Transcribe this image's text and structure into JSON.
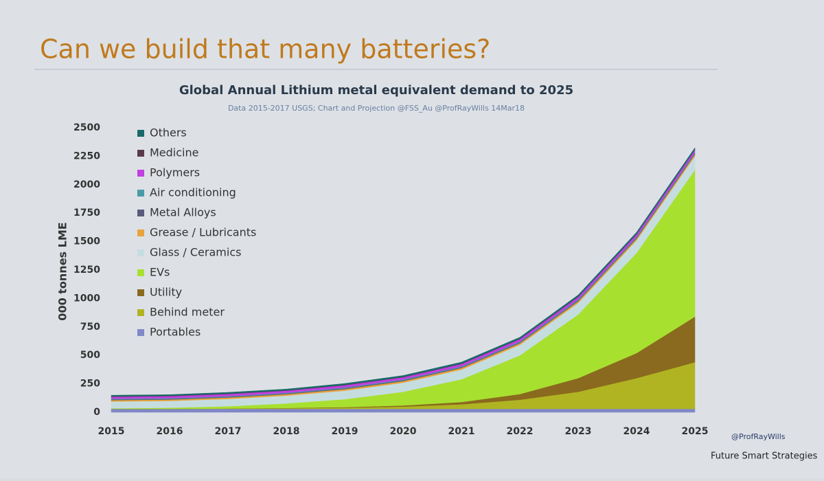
{
  "slide_title": "Can we build that many batteries?",
  "footer": {
    "handle": "@ProfRayWills",
    "company": "Future Smart Strategies"
  },
  "chart_data": {
    "type": "stacked_area",
    "title": "Global Annual Lithium metal equivalent demand to 2025",
    "subtitle": "Data 2015-2017 USGS; Chart and Projection @FSS_Au  @ProfRayWills 14Mar18",
    "y_label": "000 tonnes LME",
    "x": [
      2015,
      2016,
      2017,
      2018,
      2019,
      2020,
      2021,
      2022,
      2023,
      2024,
      2025
    ],
    "xlim": [
      2015,
      2025
    ],
    "ylim": [
      0,
      2500
    ],
    "yticks": [
      0,
      250,
      500,
      750,
      1000,
      1250,
      1500,
      1750,
      2000,
      2250,
      2500
    ],
    "series": [
      {
        "name": "Portables",
        "color": "#8088c8",
        "values": [
          30,
          30,
          30,
          30,
          30,
          30,
          30,
          30,
          30,
          30,
          30
        ]
      },
      {
        "name": "Behind meter",
        "color": "#b0b422",
        "values": [
          0,
          0,
          2,
          5,
          10,
          20,
          40,
          80,
          150,
          270,
          410
        ]
      },
      {
        "name": "Utility",
        "color": "#8a6a1e",
        "values": [
          0,
          0,
          1,
          3,
          5,
          10,
          20,
          50,
          120,
          220,
          400
        ]
      },
      {
        "name": "EVs",
        "color": "#a8e030",
        "values": [
          5,
          10,
          20,
          40,
          70,
          120,
          200,
          340,
          560,
          880,
          1290
        ]
      },
      {
        "name": "Glass / Ceramics",
        "color": "#c6dde0",
        "values": [
          60,
          60,
          64,
          68,
          75,
          80,
          85,
          92,
          100,
          110,
          120
        ]
      },
      {
        "name": "Grease / Lubricants",
        "color": "#e8a33c",
        "values": [
          12,
          12,
          13,
          13,
          14,
          14,
          15,
          15,
          16,
          16,
          17
        ]
      },
      {
        "name": "Metal Alloys",
        "color": "#5a5a7a",
        "values": [
          6,
          6,
          6,
          6,
          7,
          7,
          7,
          7,
          8,
          8,
          8
        ]
      },
      {
        "name": "Air conditioning",
        "color": "#4a9aa8",
        "values": [
          6,
          6,
          6,
          6,
          7,
          7,
          7,
          7,
          8,
          8,
          8
        ]
      },
      {
        "name": "Polymers",
        "color": "#c040e0",
        "values": [
          18,
          18,
          19,
          19,
          20,
          20,
          21,
          22,
          22,
          23,
          24
        ]
      },
      {
        "name": "Medicine",
        "color": "#5a3a4a",
        "values": [
          3,
          3,
          3,
          3,
          3,
          3,
          3,
          3,
          3,
          3,
          3
        ]
      },
      {
        "name": "Others",
        "color": "#1a6a6a",
        "values": [
          10,
          10,
          11,
          11,
          12,
          12,
          13,
          13,
          14,
          14,
          15
        ]
      }
    ]
  }
}
